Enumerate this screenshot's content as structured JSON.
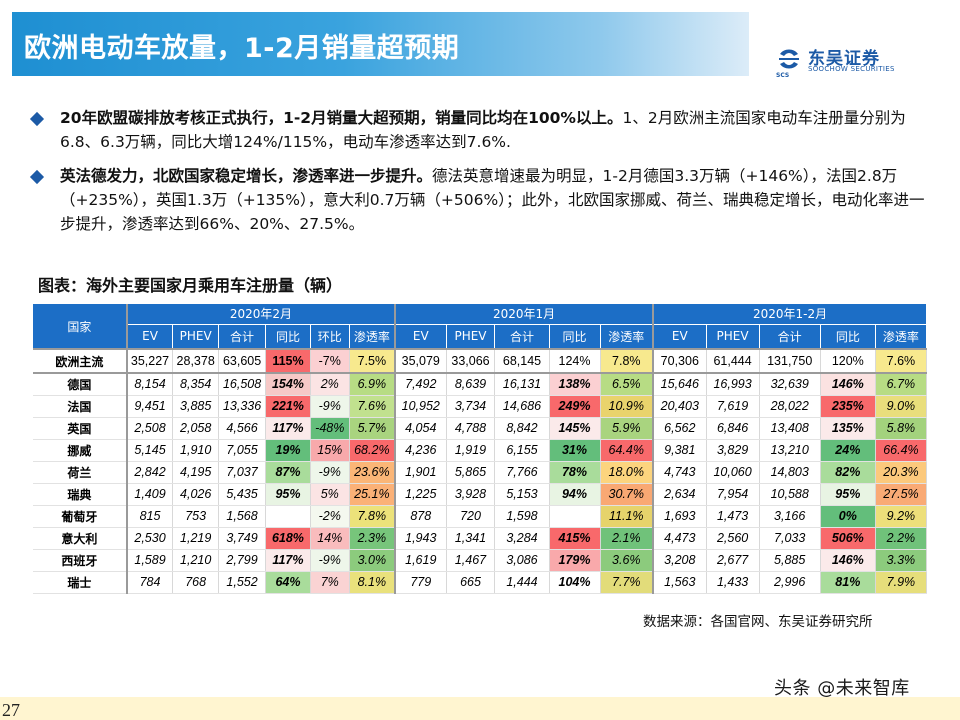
{
  "title": "欧洲电动车放量，1-2月销量超预期",
  "logo": {
    "cn": "东吴证券",
    "en": "SOOCHOW SECURITIES",
    "mark": "SCS"
  },
  "bullets": [
    {
      "bold": "20年欧盟碳排放考核正式执行，1-2月销量大超预期，销量同比均在100%以上。",
      "text": "1、2月欧洲主流国家电动车注册量分别为6.8、6.3万辆，同比大增124%/115%，电动车渗透率达到7.6%."
    },
    {
      "bold": "英法德发力，北欧国家稳定增长，渗透率进一步提升。",
      "text": "德法英意增速最为明显，1-2月德国3.3万辆（+146%），法国2.8万（+235%），英国1.3万（+135%），意大利0.7万辆（+506%）；此外，北欧国家挪威、荷兰、瑞典稳定增长，电动化率进一步提升，渗透率达到66%、20%、27.5%。"
    }
  ],
  "caption": "图表：海外主要国家月乘用车注册量（辆）",
  "table": {
    "country_header": "国家",
    "groups": [
      "2020年2月",
      "2020年1月",
      "2020年1-2月"
    ],
    "sub_headers": {
      "g1": [
        "EV",
        "PHEV",
        "合计",
        "同比",
        "环比",
        "渗透率"
      ],
      "g2": [
        "EV",
        "PHEV",
        "合计",
        "同比",
        "渗透率"
      ],
      "g3": [
        "EV",
        "PHEV",
        "合计",
        "同比",
        "渗透率"
      ]
    },
    "rows": [
      {
        "country": "欧洲主流",
        "cells": [
          "35,227",
          "28,378",
          "63,605",
          "115%",
          "-7%",
          "7.5%",
          "35,079",
          "33,066",
          "68,145",
          "124%",
          "7.8%",
          "70,306",
          "61,444",
          "131,750",
          "120%",
          "7.6%"
        ]
      },
      {
        "country": "德国",
        "cells": [
          "8,154",
          "8,354",
          "16,508",
          "154%",
          "2%",
          "6.9%",
          "7,492",
          "8,639",
          "16,131",
          "138%",
          "6.5%",
          "15,646",
          "16,993",
          "32,639",
          "146%",
          "6.7%"
        ]
      },
      {
        "country": "法国",
        "cells": [
          "9,451",
          "3,885",
          "13,336",
          "221%",
          "-9%",
          "7.6%",
          "10,952",
          "3,734",
          "14,686",
          "249%",
          "10.9%",
          "20,403",
          "7,619",
          "28,022",
          "235%",
          "9.0%"
        ]
      },
      {
        "country": "英国",
        "cells": [
          "2,508",
          "2,058",
          "4,566",
          "117%",
          "-48%",
          "5.7%",
          "4,054",
          "4,788",
          "8,842",
          "145%",
          "5.9%",
          "6,562",
          "6,846",
          "13,408",
          "135%",
          "5.8%"
        ]
      },
      {
        "country": "挪威",
        "cells": [
          "5,145",
          "1,910",
          "7,055",
          "19%",
          "15%",
          "68.2%",
          "4,236",
          "1,919",
          "6,155",
          "31%",
          "64.4%",
          "9,381",
          "3,829",
          "13,210",
          "24%",
          "66.4%"
        ]
      },
      {
        "country": "荷兰",
        "cells": [
          "2,842",
          "4,195",
          "7,037",
          "87%",
          "-9%",
          "23.6%",
          "1,901",
          "5,865",
          "7,766",
          "78%",
          "18.0%",
          "4,743",
          "10,060",
          "14,803",
          "82%",
          "20.3%"
        ]
      },
      {
        "country": "瑞典",
        "cells": [
          "1,409",
          "4,026",
          "5,435",
          "95%",
          "5%",
          "25.1%",
          "1,225",
          "3,928",
          "5,153",
          "94%",
          "30.7%",
          "2,634",
          "7,954",
          "10,588",
          "95%",
          "27.5%"
        ]
      },
      {
        "country": "葡萄牙",
        "cells": [
          "815",
          "753",
          "1,568",
          "",
          "-2%",
          "7.8%",
          "878",
          "720",
          "1,598",
          "",
          "11.1%",
          "1,693",
          "1,473",
          "3,166",
          "0%",
          "9.2%"
        ]
      },
      {
        "country": "意大利",
        "cells": [
          "2,530",
          "1,219",
          "3,749",
          "618%",
          "14%",
          "2.3%",
          "1,943",
          "1,341",
          "3,284",
          "415%",
          "2.1%",
          "4,473",
          "2,560",
          "7,033",
          "506%",
          "2.2%"
        ]
      },
      {
        "country": "西班牙",
        "cells": [
          "1,589",
          "1,210",
          "2,799",
          "117%",
          "-9%",
          "3.0%",
          "1,619",
          "1,467",
          "3,086",
          "179%",
          "3.6%",
          "3,208",
          "2,677",
          "5,885",
          "146%",
          "3.3%"
        ]
      },
      {
        "country": "瑞士",
        "cells": [
          "784",
          "768",
          "1,552",
          "64%",
          "7%",
          "8.1%",
          "779",
          "665",
          "1,444",
          "104%",
          "7.7%",
          "1,563",
          "1,433",
          "2,996",
          "81%",
          "7.9%"
        ]
      }
    ],
    "cell_colors": [
      [
        "",
        "",
        "",
        "#f8696b",
        "#fbd0d2",
        "#f7e98e",
        "",
        "",
        "",
        "#ffffff",
        "#f7e98e",
        "",
        "",
        "",
        "#ffffff",
        "#f7e98e"
      ],
      [
        "",
        "",
        "",
        "#f6c9c7",
        "#fbe4e4",
        "#b7dc84",
        "",
        "",
        "",
        "#fbd0d2",
        "#b7dc84",
        "",
        "",
        "",
        "#fbe2e1",
        "#b7dc84"
      ],
      [
        "",
        "",
        "",
        "#f8696b",
        "#eef6ea",
        "#c1e18e",
        "",
        "",
        "",
        "#f8696b",
        "#e9d36c",
        "",
        "",
        "",
        "#f8696b",
        "#e9de7c"
      ],
      [
        "",
        "",
        "",
        "#fbeaea",
        "#63be7b",
        "#a9d47f",
        "",
        "",
        "",
        "#fbeaea",
        "#a9d47f",
        "",
        "",
        "",
        "#fbeaea",
        "#a3d27d"
      ],
      [
        "",
        "",
        "",
        "#63be7b",
        "#f8a9ab",
        "#f8696b",
        "",
        "",
        "",
        "#63be7b",
        "#f8696b",
        "",
        "",
        "",
        "#63be7b",
        "#f8696b"
      ],
      [
        "",
        "",
        "",
        "#a9dc9b",
        "#eef6ea",
        "#fbb677",
        "",
        "",
        "",
        "#a9dc9b",
        "#fcd47e",
        "",
        "",
        "",
        "#a9dc9b",
        "#fcc97c"
      ],
      [
        "",
        "",
        "",
        "#e8f4e3",
        "#fbe4e4",
        "#fbb177",
        "",
        "",
        "",
        "#e8f4e3",
        "#f9a873",
        "",
        "",
        "",
        "#e8f4e3",
        "#f9aa75"
      ],
      [
        "",
        "",
        "",
        "",
        "#f4f8ef",
        "#ece27a",
        "",
        "",
        "",
        "",
        "#e6d36b",
        "",
        "",
        "",
        "#63be7b",
        "#eddf7a"
      ],
      [
        "",
        "",
        "",
        "#f8696b",
        "#f9bcbd",
        "#77c57b",
        "",
        "",
        "",
        "#f8696b",
        "#70c27a",
        "",
        "",
        "",
        "#f8696b",
        "#70c27a"
      ],
      [
        "",
        "",
        "",
        "#fbeaea",
        "#eef6ea",
        "#8ccb7d",
        "",
        "",
        "",
        "#f9a9ab",
        "#8ccb7d",
        "",
        "",
        "",
        "#fbeaea",
        "#8ccb7d"
      ],
      [
        "",
        "",
        "",
        "#a9dc9b",
        "#fad3d3",
        "#e9e17c",
        "",
        "",
        "",
        "#ffffff",
        "#e2dc7a",
        "",
        "",
        "",
        "#a9dc9b",
        "#e6de7b"
      ]
    ],
    "bold_cols": [
      3,
      9,
      14
    ]
  },
  "source": "数据来源：各国官网、东吴证券研究所",
  "page_number": "27",
  "watermark": "头条 @未来智库"
}
